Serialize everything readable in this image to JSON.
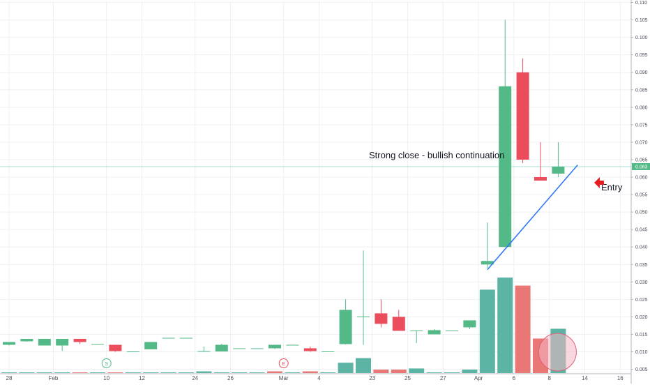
{
  "chart_data": {
    "type": "candlestick",
    "y_axis": {
      "min": 0.003,
      "max": 0.11,
      "ticks": [
        "0.005",
        "0.010",
        "0.015",
        "0.020",
        "0.025",
        "0.030",
        "0.035",
        "0.040",
        "0.045",
        "0.050",
        "0.055",
        "0.060",
        "0.065",
        "0.070",
        "0.075",
        "0.080",
        "0.085",
        "0.090",
        "0.095",
        "0.100",
        "0.105",
        "0.110"
      ],
      "tick_values": [
        0.005,
        0.01,
        0.015,
        0.02,
        0.025,
        0.03,
        0.035,
        0.04,
        0.045,
        0.05,
        0.055,
        0.06,
        0.065,
        0.07,
        0.075,
        0.08,
        0.085,
        0.09,
        0.095,
        0.1,
        0.105,
        0.11
      ],
      "last_price_label": "0.063",
      "last_price": 0.063
    },
    "x_axis": {
      "ticks": [
        {
          "label": "28",
          "index": 0
        },
        {
          "label": "Feb",
          "index": 2.5
        },
        {
          "label": "10",
          "index": 5.5
        },
        {
          "label": "12",
          "index": 7.5
        },
        {
          "label": "24",
          "index": 10.5
        },
        {
          "label": "26",
          "index": 12.5
        },
        {
          "label": "Mar",
          "index": 15.5
        },
        {
          "label": "4",
          "index": 17.5
        },
        {
          "label": "23",
          "index": 20.5
        },
        {
          "label": "25",
          "index": 22.5
        },
        {
          "label": "27",
          "index": 24.5
        },
        {
          "label": "Apr",
          "index": 26.5
        },
        {
          "label": "6",
          "index": 28.5
        },
        {
          "label": "8",
          "index": 30.5
        },
        {
          "label": "14",
          "index": 32.5
        },
        {
          "label": "16",
          "index": 34.5
        }
      ]
    },
    "candles": [
      {
        "o": 0.012,
        "h": 0.0128,
        "l": 0.0118,
        "c": 0.0128
      },
      {
        "o": 0.013,
        "h": 0.0137,
        "l": 0.0129,
        "c": 0.0137
      },
      {
        "o": 0.0118,
        "h": 0.0137,
        "l": 0.0118,
        "c": 0.0137
      },
      {
        "o": 0.0118,
        "h": 0.0137,
        "l": 0.0103,
        "c": 0.0137
      },
      {
        "o": 0.0137,
        "h": 0.0137,
        "l": 0.0122,
        "c": 0.0128
      },
      {
        "o": 0.0122,
        "h": 0.0122,
        "l": 0.012,
        "c": 0.0122
      },
      {
        "o": 0.012,
        "h": 0.012,
        "l": 0.01,
        "c": 0.0102
      },
      {
        "o": 0.0101,
        "h": 0.0101,
        "l": 0.01,
        "c": 0.0101
      },
      {
        "o": 0.0107,
        "h": 0.0128,
        "l": 0.0107,
        "c": 0.0128
      },
      {
        "o": 0.014,
        "h": 0.014,
        "l": 0.0139,
        "c": 0.014
      },
      {
        "o": 0.014,
        "h": 0.014,
        "l": 0.0139,
        "c": 0.014
      },
      {
        "o": 0.0101,
        "h": 0.0115,
        "l": 0.0101,
        "c": 0.0102
      },
      {
        "o": 0.0101,
        "h": 0.0123,
        "l": 0.0101,
        "c": 0.012
      },
      {
        "o": 0.011,
        "h": 0.011,
        "l": 0.0109,
        "c": 0.011
      },
      {
        "o": 0.011,
        "h": 0.011,
        "l": 0.0109,
        "c": 0.011
      },
      {
        "o": 0.011,
        "h": 0.012,
        "l": 0.0108,
        "c": 0.012
      },
      {
        "o": 0.012,
        "h": 0.012,
        "l": 0.0119,
        "c": 0.012
      },
      {
        "o": 0.011,
        "h": 0.0115,
        "l": 0.01,
        "c": 0.0102
      },
      {
        "o": 0.0101,
        "h": 0.0101,
        "l": 0.01,
        "c": 0.0101
      },
      {
        "o": 0.0122,
        "h": 0.025,
        "l": 0.0121,
        "c": 0.022
      },
      {
        "o": 0.02,
        "h": 0.039,
        "l": 0.012,
        "c": 0.0201
      },
      {
        "o": 0.021,
        "h": 0.025,
        "l": 0.017,
        "c": 0.018
      },
      {
        "o": 0.02,
        "h": 0.022,
        "l": 0.016,
        "c": 0.016
      },
      {
        "o": 0.016,
        "h": 0.016,
        "l": 0.0125,
        "c": 0.0161
      },
      {
        "o": 0.015,
        "h": 0.0165,
        "l": 0.015,
        "c": 0.0162
      },
      {
        "o": 0.0161,
        "h": 0.0161,
        "l": 0.016,
        "c": 0.0161
      },
      {
        "o": 0.017,
        "h": 0.019,
        "l": 0.0165,
        "c": 0.019
      },
      {
        "o": 0.035,
        "h": 0.047,
        "l": 0.034,
        "c": 0.036
      },
      {
        "o": 0.04,
        "h": 0.105,
        "l": 0.04,
        "c": 0.086
      },
      {
        "o": 0.09,
        "h": 0.094,
        "l": 0.064,
        "c": 0.065
      },
      {
        "o": 0.06,
        "h": 0.07,
        "l": 0.059,
        "c": 0.059
      },
      {
        "o": 0.061,
        "h": 0.07,
        "l": 0.06,
        "c": 0.063
      }
    ],
    "volume": [
      {
        "v": 0.05,
        "up": true
      },
      {
        "v": 0.05,
        "up": true
      },
      {
        "v": 0.05,
        "up": true
      },
      {
        "v": 0.05,
        "up": true
      },
      {
        "v": 0.1,
        "up": false
      },
      {
        "v": 0.05,
        "up": true
      },
      {
        "v": 0.05,
        "up": false
      },
      {
        "v": 0.05,
        "up": true
      },
      {
        "v": 0.05,
        "up": true
      },
      {
        "v": 0.05,
        "up": true
      },
      {
        "v": 0.05,
        "up": true
      },
      {
        "v": 0.3,
        "up": true
      },
      {
        "v": 0.05,
        "up": true
      },
      {
        "v": 0.05,
        "up": true
      },
      {
        "v": 0.05,
        "up": true
      },
      {
        "v": 0.3,
        "up": false
      },
      {
        "v": 0.05,
        "up": true
      },
      {
        "v": 0.3,
        "up": false
      },
      {
        "v": 0.05,
        "up": true
      },
      {
        "v": 1.8,
        "up": true
      },
      {
        "v": 2.6,
        "up": true
      },
      {
        "v": 0.6,
        "up": false
      },
      {
        "v": 0.6,
        "up": false
      },
      {
        "v": 0.8,
        "up": true
      },
      {
        "v": 0.05,
        "up": true
      },
      {
        "v": 0.05,
        "up": true
      },
      {
        "v": 0.6,
        "up": true
      },
      {
        "v": 14.5,
        "up": true
      },
      {
        "v": 16.6,
        "up": true
      },
      {
        "v": 15.2,
        "up": false
      },
      {
        "v": 6.0,
        "up": false
      },
      {
        "v": 7.7,
        "up": true
      }
    ],
    "events": [
      {
        "letter": "S",
        "index": 5.5,
        "color": "#53b987"
      },
      {
        "letter": "E",
        "index": 15.5,
        "color": "#eb4d5c"
      }
    ],
    "annotations": {
      "text_1": "Strong close - bullish continuation",
      "text_2": "Entry"
    },
    "trendline": {
      "from_index": 27,
      "from_value": 0.0335,
      "to_index": 32.1,
      "to_value": 0.0635,
      "color": "#3179f5"
    },
    "colors": {
      "up": "#53b987",
      "down": "#eb4d5c",
      "vol_up": "#53b0a0",
      "vol_down": "#e8706f",
      "grid": "#eef0f3",
      "price_line": "#a8dcd5",
      "arrow": "#e41e1e",
      "circle_fill": "#f4b6c2",
      "circle_stroke": "#e0607a"
    }
  }
}
